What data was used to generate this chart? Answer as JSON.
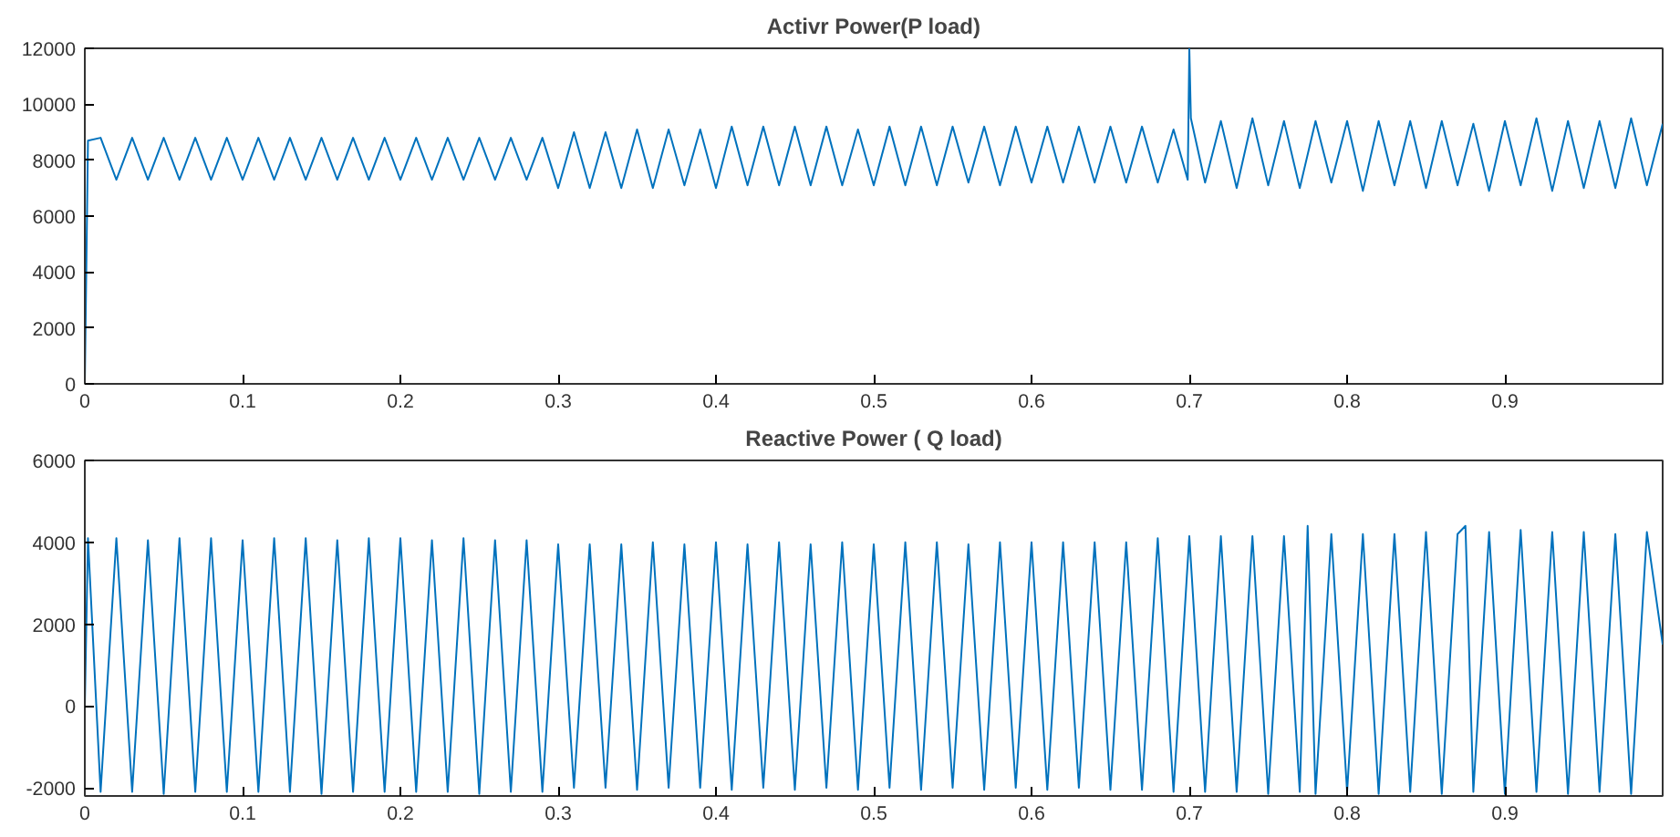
{
  "chart_data": [
    {
      "type": "line",
      "title": "Activr Power(P load)",
      "xlim": [
        0,
        1
      ],
      "ylim": [
        0,
        12000
      ],
      "xticks": [
        0,
        0.1,
        0.2,
        0.3,
        0.4,
        0.5,
        0.6,
        0.7,
        0.8,
        0.9
      ],
      "yticks": [
        0,
        2000,
        4000,
        6000,
        8000,
        10000,
        12000
      ],
      "grid": false,
      "series": [
        {
          "color": "#0072bd",
          "x": [
            0,
            0.002,
            0.01,
            0.02,
            0.03,
            0.04,
            0.05,
            0.06,
            0.07,
            0.08,
            0.09,
            0.1,
            0.11,
            0.12,
            0.13,
            0.14,
            0.15,
            0.16,
            0.17,
            0.18,
            0.19,
            0.2,
            0.21,
            0.22,
            0.23,
            0.24,
            0.25,
            0.26,
            0.27,
            0.28,
            0.29,
            0.3,
            0.31,
            0.32,
            0.33,
            0.34,
            0.35,
            0.36,
            0.37,
            0.38,
            0.39,
            0.4,
            0.41,
            0.42,
            0.43,
            0.44,
            0.45,
            0.46,
            0.47,
            0.48,
            0.49,
            0.5,
            0.51,
            0.52,
            0.53,
            0.54,
            0.55,
            0.56,
            0.57,
            0.58,
            0.59,
            0.6,
            0.61,
            0.62,
            0.63,
            0.64,
            0.65,
            0.66,
            0.67,
            0.68,
            0.69,
            0.699,
            0.7,
            0.701,
            0.71,
            0.72,
            0.73,
            0.74,
            0.75,
            0.76,
            0.77,
            0.78,
            0.79,
            0.8,
            0.81,
            0.82,
            0.83,
            0.84,
            0.85,
            0.86,
            0.87,
            0.88,
            0.89,
            0.9,
            0.91,
            0.92,
            0.93,
            0.94,
            0.95,
            0.96,
            0.97,
            0.98,
            0.99,
            1.0
          ],
          "values": [
            0,
            8700,
            8800,
            7300,
            8800,
            7300,
            8800,
            7300,
            8800,
            7300,
            8800,
            7300,
            8800,
            7300,
            8800,
            7300,
            8800,
            7300,
            8800,
            7300,
            8800,
            7300,
            8800,
            7300,
            8800,
            7300,
            8800,
            7300,
            8800,
            7300,
            8800,
            7000,
            9000,
            7000,
            9000,
            7000,
            9100,
            7000,
            9100,
            7100,
            9100,
            7000,
            9200,
            7100,
            9200,
            7100,
            9200,
            7100,
            9200,
            7100,
            9100,
            7100,
            9200,
            7100,
            9200,
            7100,
            9200,
            7200,
            9200,
            7100,
            9200,
            7200,
            9200,
            7200,
            9200,
            7200,
            9200,
            7200,
            9200,
            7200,
            9100,
            7300,
            12000,
            9500,
            7200,
            9400,
            7000,
            9500,
            7100,
            9400,
            7000,
            9400,
            7200,
            9400,
            6900,
            9400,
            7100,
            9400,
            7000,
            9400,
            7100,
            9300,
            6900,
            9400,
            7100,
            9500,
            6900,
            9400,
            7000,
            9400,
            7000,
            9500,
            7100,
            9300
          ]
        }
      ]
    },
    {
      "type": "line",
      "title": "Reactive Power ( Q load)",
      "xlim": [
        0,
        1
      ],
      "ylim": [
        -2200,
        6000
      ],
      "xticks": [
        0,
        0.1,
        0.2,
        0.3,
        0.4,
        0.5,
        0.6,
        0.7,
        0.8,
        0.9
      ],
      "yticks": [
        -2000,
        0,
        2000,
        4000,
        6000
      ],
      "grid": false,
      "series": [
        {
          "color": "#0072bd",
          "x": [
            0,
            0.002,
            0.01,
            0.02,
            0.03,
            0.04,
            0.05,
            0.06,
            0.07,
            0.08,
            0.09,
            0.1,
            0.11,
            0.12,
            0.13,
            0.14,
            0.15,
            0.16,
            0.17,
            0.18,
            0.19,
            0.2,
            0.21,
            0.22,
            0.23,
            0.24,
            0.25,
            0.26,
            0.27,
            0.28,
            0.29,
            0.3,
            0.31,
            0.32,
            0.33,
            0.34,
            0.35,
            0.36,
            0.37,
            0.38,
            0.39,
            0.4,
            0.41,
            0.42,
            0.43,
            0.44,
            0.45,
            0.46,
            0.47,
            0.48,
            0.49,
            0.5,
            0.51,
            0.52,
            0.53,
            0.54,
            0.55,
            0.56,
            0.57,
            0.58,
            0.59,
            0.6,
            0.61,
            0.62,
            0.63,
            0.64,
            0.65,
            0.66,
            0.67,
            0.68,
            0.69,
            0.7,
            0.71,
            0.72,
            0.73,
            0.74,
            0.75,
            0.76,
            0.77,
            0.775,
            0.78,
            0.79,
            0.8,
            0.81,
            0.82,
            0.83,
            0.84,
            0.85,
            0.86,
            0.87,
            0.875,
            0.88,
            0.89,
            0.9,
            0.91,
            0.92,
            0.93,
            0.94,
            0.95,
            0.96,
            0.97,
            0.98,
            0.99,
            1.0
          ],
          "values": [
            0,
            4100,
            -2100,
            4100,
            -2100,
            4050,
            -2150,
            4100,
            -2100,
            4100,
            -2100,
            4050,
            -2100,
            4100,
            -2100,
            4100,
            -2150,
            4050,
            -2100,
            4100,
            -2100,
            4100,
            -2100,
            4050,
            -2100,
            4100,
            -2150,
            4050,
            -2100,
            4050,
            -2100,
            3950,
            -2000,
            3950,
            -2000,
            3950,
            -2050,
            4000,
            -2000,
            3950,
            -2000,
            4000,
            -2050,
            3950,
            -2000,
            4000,
            -2050,
            3950,
            -2000,
            4000,
            -2050,
            3950,
            -2000,
            4000,
            -2050,
            4000,
            -2000,
            3950,
            -2050,
            4000,
            -2000,
            4000,
            -2050,
            4000,
            -2000,
            4000,
            -2050,
            4000,
            -2050,
            4100,
            -2100,
            4150,
            -2100,
            4150,
            -2100,
            4150,
            -2150,
            4150,
            -2100,
            4400,
            -2150,
            4200,
            -2100,
            4200,
            -2150,
            4200,
            -2100,
            4250,
            -2150,
            4200,
            4400,
            -2100,
            4250,
            -2150,
            4300,
            -2100,
            4250,
            -2150,
            4250,
            -2100,
            4200,
            -2150,
            4250,
            1500
          ]
        }
      ]
    }
  ]
}
